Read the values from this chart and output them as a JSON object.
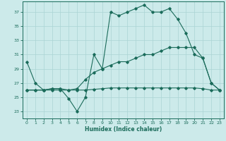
{
  "xlabel": "Humidex (Indice chaleur)",
  "bg_color": "#cceaea",
  "line_color": "#1a6b5a",
  "grid_color": "#aad4d4",
  "xlim": [
    -0.5,
    23.5
  ],
  "ylim": [
    22.0,
    38.5
  ],
  "yticks": [
    23,
    25,
    27,
    29,
    31,
    33,
    35,
    37
  ],
  "xticks": [
    0,
    1,
    2,
    3,
    4,
    5,
    6,
    7,
    8,
    9,
    10,
    11,
    12,
    13,
    14,
    15,
    16,
    17,
    18,
    19,
    20,
    21,
    22,
    23
  ],
  "line1_x": [
    0,
    1,
    2,
    3,
    4,
    5,
    6,
    7,
    8,
    9,
    10,
    11,
    12,
    13,
    14,
    15,
    16,
    17,
    18,
    19,
    20,
    21,
    22,
    23
  ],
  "line1_y": [
    30,
    27,
    26,
    26.2,
    26.2,
    24.8,
    23,
    25,
    31,
    29,
    37,
    36.5,
    37,
    37.5,
    38,
    37,
    37,
    37.5,
    36,
    34,
    31,
    30.5,
    27,
    26
  ],
  "line2_x": [
    0,
    1,
    2,
    3,
    4,
    5,
    6,
    7,
    8,
    9,
    10,
    11,
    12,
    13,
    14,
    15,
    16,
    17,
    18,
    19,
    20,
    21,
    22,
    23
  ],
  "line2_y": [
    26,
    26,
    26,
    26.2,
    26.2,
    26,
    26.2,
    27.5,
    28.5,
    29,
    29.5,
    30,
    30,
    30.5,
    31,
    31,
    31.5,
    32,
    32,
    32,
    32,
    30.5,
    27,
    26
  ],
  "line3_x": [
    0,
    1,
    2,
    3,
    4,
    5,
    6,
    7,
    8,
    9,
    10,
    11,
    12,
    13,
    14,
    15,
    16,
    17,
    18,
    19,
    20,
    21,
    22,
    23
  ],
  "line3_y": [
    26,
    26,
    26,
    26,
    26,
    26,
    26,
    26,
    26.1,
    26.2,
    26.3,
    26.3,
    26.3,
    26.3,
    26.3,
    26.3,
    26.3,
    26.3,
    26.3,
    26.3,
    26.3,
    26.2,
    26,
    26
  ]
}
